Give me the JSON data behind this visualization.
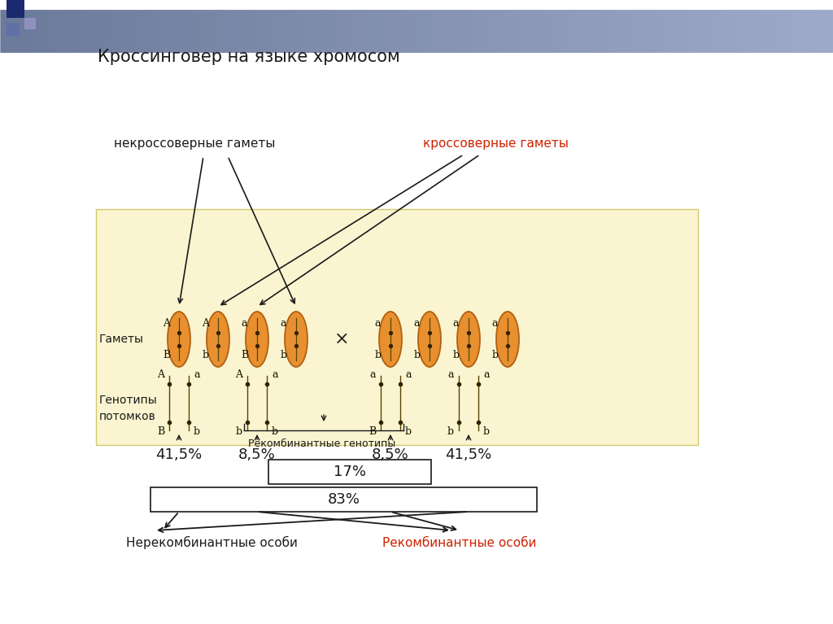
{
  "title": "Кроссинговер на языке хромосом",
  "bg_color": "#ffffff",
  "panel_color": "#faf5d0",
  "panel_border": "#d4c870",
  "label_gamety": "Гаметы",
  "label_genotipy": "Генотипы\nпотомков",
  "label_nekross": "некроссоверные гаметы",
  "label_kross": "кроссоверные гаметы",
  "label_rekomb_gen": "Рекомбинантные генотипы",
  "label_nerekomb_osobi": "Нерекомбинантные особи",
  "label_rekomb_osobi": "Рекомбинантные особи",
  "pct_41_5": "41,5%",
  "pct_8_5": "8,5%",
  "pct_17": "17%",
  "pct_83": "83%",
  "color_black": "#1a1a1a",
  "color_red": "#cc2200",
  "color_dark": "#222200",
  "ellipse_fill": "#e89030",
  "ellipse_edge": "#b06010",
  "ellipse_fill2": "#f0a840",
  "header_grad_left": "#3a4f7a",
  "header_grad_right": "#8090b8"
}
